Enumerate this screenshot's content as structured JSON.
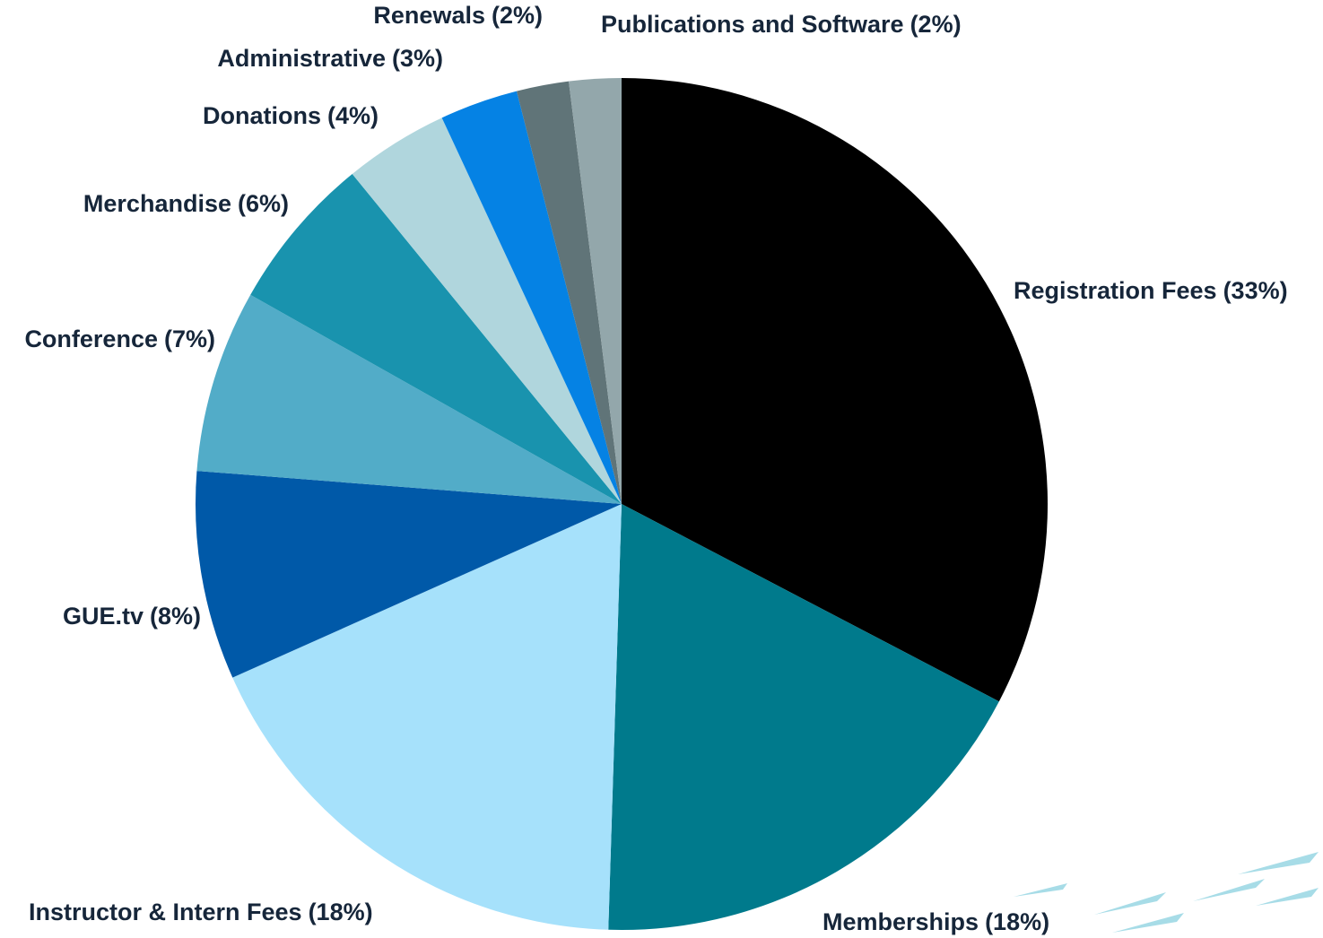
{
  "chart_data": {
    "type": "pie",
    "categories": [
      "Registration Fees",
      "Memberships",
      "Instructor & Intern Fees",
      "GUE.tv",
      "Conference",
      "Merchandise",
      "Donations",
      "Administrative",
      "Renewals",
      "Publications and Software"
    ],
    "values": [
      33,
      18,
      18,
      8,
      7,
      6,
      4,
      3,
      2,
      2
    ],
    "value_labels": [
      "(33%)",
      "(18%)",
      "(18%)",
      "(8%)",
      "(7%)",
      "(6%)",
      "(4%)",
      "(3%)",
      "(2%)",
      "(2%)"
    ],
    "colors": [
      "#000000",
      "#007a8c",
      "#a6e1fb",
      "#0059a8",
      "#52acc8",
      "#1993ae",
      "#b0d6dd",
      "#0582e4",
      "#607478",
      "#93a7ab"
    ]
  }
}
